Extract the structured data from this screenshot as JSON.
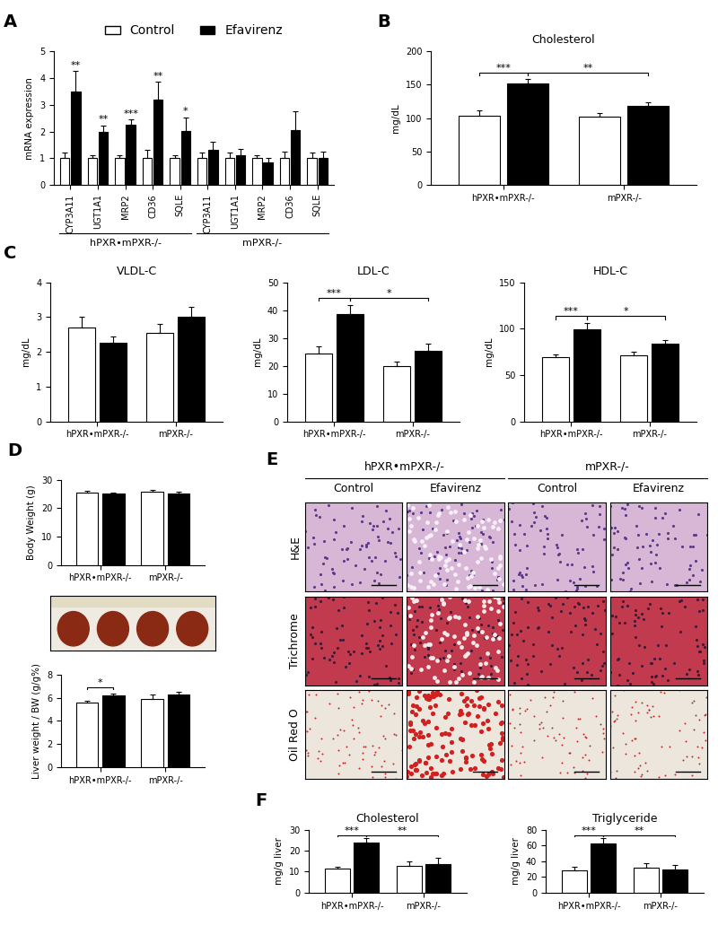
{
  "chart_data": [
    {
      "panel": "A",
      "type": "bar",
      "y_label": "mRNA expression",
      "categories": [
        "CYP3A11",
        "UGT1A1",
        "MRP2",
        "CD36",
        "SQLE",
        "CYP3A11",
        "UGT1A1",
        "MRP2",
        "CD36",
        "SQLE"
      ],
      "group_labels": [
        "hPXR•mPXR-/-",
        "mPXR-/-"
      ],
      "series": [
        {
          "name": "Control",
          "color": "#ffffff",
          "values": [
            1,
            1,
            1,
            1,
            1,
            1,
            1,
            1,
            1,
            1
          ],
          "errors": [
            0.2,
            0.12,
            0.1,
            0.3,
            0.1,
            0.2,
            0.2,
            0.12,
            0.25,
            0.2
          ]
        },
        {
          "name": "Efavirenz",
          "color": "#000000",
          "values": [
            3.5,
            1.97,
            2.25,
            3.2,
            2.02,
            1.32,
            1.1,
            0.85,
            2.05,
            1.0
          ],
          "errors": [
            0.75,
            0.25,
            0.2,
            0.65,
            0.5,
            0.3,
            0.25,
            0.15,
            0.7,
            0.25
          ],
          "annotations": [
            "**",
            "**",
            "***",
            "**",
            "*",
            null,
            null,
            null,
            null,
            null
          ]
        }
      ],
      "ylim": [
        0,
        5
      ],
      "yticks": [
        0,
        1,
        2,
        3,
        4,
        5
      ],
      "legend": "upper center"
    },
    {
      "panel": "B",
      "type": "bar",
      "title": "Cholesterol",
      "y_label": "mg/dL",
      "categories": [
        "hPXR•mPXR-/-",
        "mPXR-/-"
      ],
      "series": [
        {
          "name": "Control",
          "color": "#ffffff",
          "values": [
            104,
            102
          ],
          "errors": [
            8,
            6
          ]
        },
        {
          "name": "Efavirenz",
          "color": "#000000",
          "values": [
            151,
            118
          ],
          "errors": [
            7,
            6
          ]
        }
      ],
      "ylim": [
        0,
        200
      ],
      "yticks": [
        0,
        50,
        100,
        150,
        200
      ],
      "brackets": [
        {
          "between": [
            [
              "hPXR•mPXR-/-",
              "Control"
            ],
            [
              "hPXR•mPXR-/-",
              "Efavirenz"
            ]
          ],
          "label": "***"
        },
        {
          "between": [
            [
              "hPXR•mPXR-/-",
              "Efavirenz"
            ],
            [
              "mPXR-/-",
              "Efavirenz"
            ]
          ],
          "label": "**"
        }
      ]
    },
    {
      "panel": "C",
      "type": "bar",
      "title": "VLDL-C",
      "y_label": "mg/dL",
      "categories": [
        "hPXR•mPXR-/-",
        "mPXR-/-"
      ],
      "series": [
        {
          "name": "Control",
          "color": "#ffffff",
          "values": [
            2.7,
            2.55
          ],
          "errors": [
            0.3,
            0.25
          ]
        },
        {
          "name": "Efavirenz",
          "color": "#000000",
          "values": [
            2.25,
            3.0
          ],
          "errors": [
            0.2,
            0.3
          ]
        }
      ],
      "ylim": [
        0,
        4
      ],
      "yticks": [
        0,
        1,
        2,
        3,
        4
      ]
    },
    {
      "type": "bar",
      "title": "LDL-C",
      "y_label": "mg/dL",
      "categories": [
        "hPXR•mPXR-/-",
        "mPXR-/-"
      ],
      "series": [
        {
          "name": "Control",
          "color": "#ffffff",
          "values": [
            24.5,
            20
          ],
          "errors": [
            2.5,
            1.5
          ]
        },
        {
          "name": "Efavirenz",
          "color": "#000000",
          "values": [
            38.5,
            25.5
          ],
          "errors": [
            3.5,
            2.5
          ]
        }
      ],
      "ylim": [
        0,
        50
      ],
      "yticks": [
        0,
        10,
        20,
        30,
        40,
        50
      ],
      "brackets": [
        {
          "between": [
            [
              "hPXR•mPXR-/-",
              "Control"
            ],
            [
              "hPXR•mPXR-/-",
              "Efavirenz"
            ]
          ],
          "label": "***"
        },
        {
          "between": [
            [
              "hPXR•mPXR-/-",
              "Efavirenz"
            ],
            [
              "mPXR-/-",
              "Efavirenz"
            ]
          ],
          "label": "*"
        }
      ]
    },
    {
      "type": "bar",
      "title": "HDL-C",
      "y_label": "mg/dL",
      "categories": [
        "hPXR•mPXR-/-",
        "mPXR-/-"
      ],
      "series": [
        {
          "name": "Control",
          "color": "#ffffff",
          "values": [
            69,
            71
          ],
          "errors": [
            3,
            4
          ]
        },
        {
          "name": "Efavirenz",
          "color": "#000000",
          "values": [
            99,
            84
          ],
          "errors": [
            7,
            4
          ]
        }
      ],
      "ylim": [
        0,
        150
      ],
      "yticks": [
        0,
        50,
        100,
        150
      ],
      "brackets": [
        {
          "between": [
            [
              "hPXR•mPXR-/-",
              "Control"
            ],
            [
              "hPXR•mPXR-/-",
              "Efavirenz"
            ]
          ],
          "label": "***"
        },
        {
          "between": [
            [
              "hPXR•mPXR-/-",
              "Efavirenz"
            ],
            [
              "mPXR-/-",
              "Efavirenz"
            ]
          ],
          "label": "*"
        }
      ]
    },
    {
      "panel": "D",
      "type": "bar",
      "y_label": "Body Weight (g)",
      "categories": [
        "hPXR•mPXR-/-",
        "mPXR-/-"
      ],
      "series": [
        {
          "name": "Control",
          "color": "#ffffff",
          "values": [
            25.6,
            25.8
          ],
          "errors": [
            0.6,
            0.6
          ]
        },
        {
          "name": "Efavirenz",
          "color": "#000000",
          "values": [
            25.1,
            25.2
          ],
          "errors": [
            0.5,
            0.5
          ]
        }
      ],
      "ylim": [
        0,
        30
      ],
      "yticks": [
        0,
        10,
        20,
        30
      ]
    },
    {
      "type": "bar",
      "y_label": "Liver weight / BW (g/g%)",
      "categories": [
        "hPXR•mPXR-/-",
        "mPXR-/-"
      ],
      "series": [
        {
          "name": "Control",
          "color": "#ffffff",
          "values": [
            5.55,
            5.9
          ],
          "errors": [
            0.15,
            0.35
          ]
        },
        {
          "name": "Efavirenz",
          "color": "#000000",
          "values": [
            6.2,
            6.25
          ],
          "errors": [
            0.12,
            0.25
          ]
        }
      ],
      "ylim": [
        0,
        8
      ],
      "yticks": [
        0,
        2,
        4,
        6,
        8
      ],
      "brackets": [
        {
          "between": [
            [
              "hPXR•mPXR-/-",
              "Control"
            ],
            [
              "hPXR•mPXR-/-",
              "Efavirenz"
            ]
          ],
          "label": "*"
        }
      ]
    },
    {
      "panel": "F",
      "type": "bar",
      "title": "Cholesterol",
      "y_label": "mg/g liver",
      "categories": [
        "hPXR•mPXR-/-",
        "mPXR-/-"
      ],
      "series": [
        {
          "name": "Control",
          "color": "#ffffff",
          "values": [
            11.3,
            12.8
          ],
          "errors": [
            1,
            2.2
          ]
        },
        {
          "name": "Efavirenz",
          "color": "#000000",
          "values": [
            23.7,
            13.8
          ],
          "errors": [
            2.2,
            2.7
          ]
        }
      ],
      "ylim": [
        0,
        30
      ],
      "yticks": [
        0,
        10,
        20,
        30
      ],
      "brackets": [
        {
          "between": [
            [
              "hPXR•mPXR-/-",
              "Control"
            ],
            [
              "hPXR•mPXR-/-",
              "Efavirenz"
            ]
          ],
          "label": "***"
        },
        {
          "between": [
            [
              "hPXR•mPXR-/-",
              "Efavirenz"
            ],
            [
              "mPXR-/-",
              "Efavirenz"
            ]
          ],
          "label": "**"
        }
      ]
    },
    {
      "type": "bar",
      "title": "Triglyceride",
      "y_label": "mg/g liver",
      "categories": [
        "hPXR•mPXR-/-",
        "mPXR-/-"
      ],
      "series": [
        {
          "name": "Control",
          "color": "#ffffff",
          "values": [
            28,
            31.5
          ],
          "errors": [
            5,
            5.5
          ]
        },
        {
          "name": "Efavirenz",
          "color": "#000000",
          "values": [
            62,
            29.5
          ],
          "errors": [
            7,
            5.5
          ]
        }
      ],
      "ylim": [
        0,
        80
      ],
      "yticks": [
        0,
        20,
        40,
        60,
        80
      ],
      "brackets": [
        {
          "between": [
            [
              "hPXR•mPXR-/-",
              "Control"
            ],
            [
              "hPXR•mPXR-/-",
              "Efavirenz"
            ]
          ],
          "label": "***"
        },
        {
          "between": [
            [
              "hPXR•mPXR-/-",
              "Efavirenz"
            ],
            [
              "mPXR-/-",
              "Efavirenz"
            ]
          ],
          "label": "**"
        }
      ]
    }
  ],
  "image_panels": [
    {
      "panel": "E",
      "group_labels": [
        "hPXR•mPXR-/-",
        "mPXR-/-"
      ],
      "column_labels": [
        "Control",
        "Efavirenz",
        "Control",
        "Efavirenz"
      ],
      "row_labels": [
        "H&E",
        "Trichrome",
        "Oil Red O"
      ]
    }
  ]
}
